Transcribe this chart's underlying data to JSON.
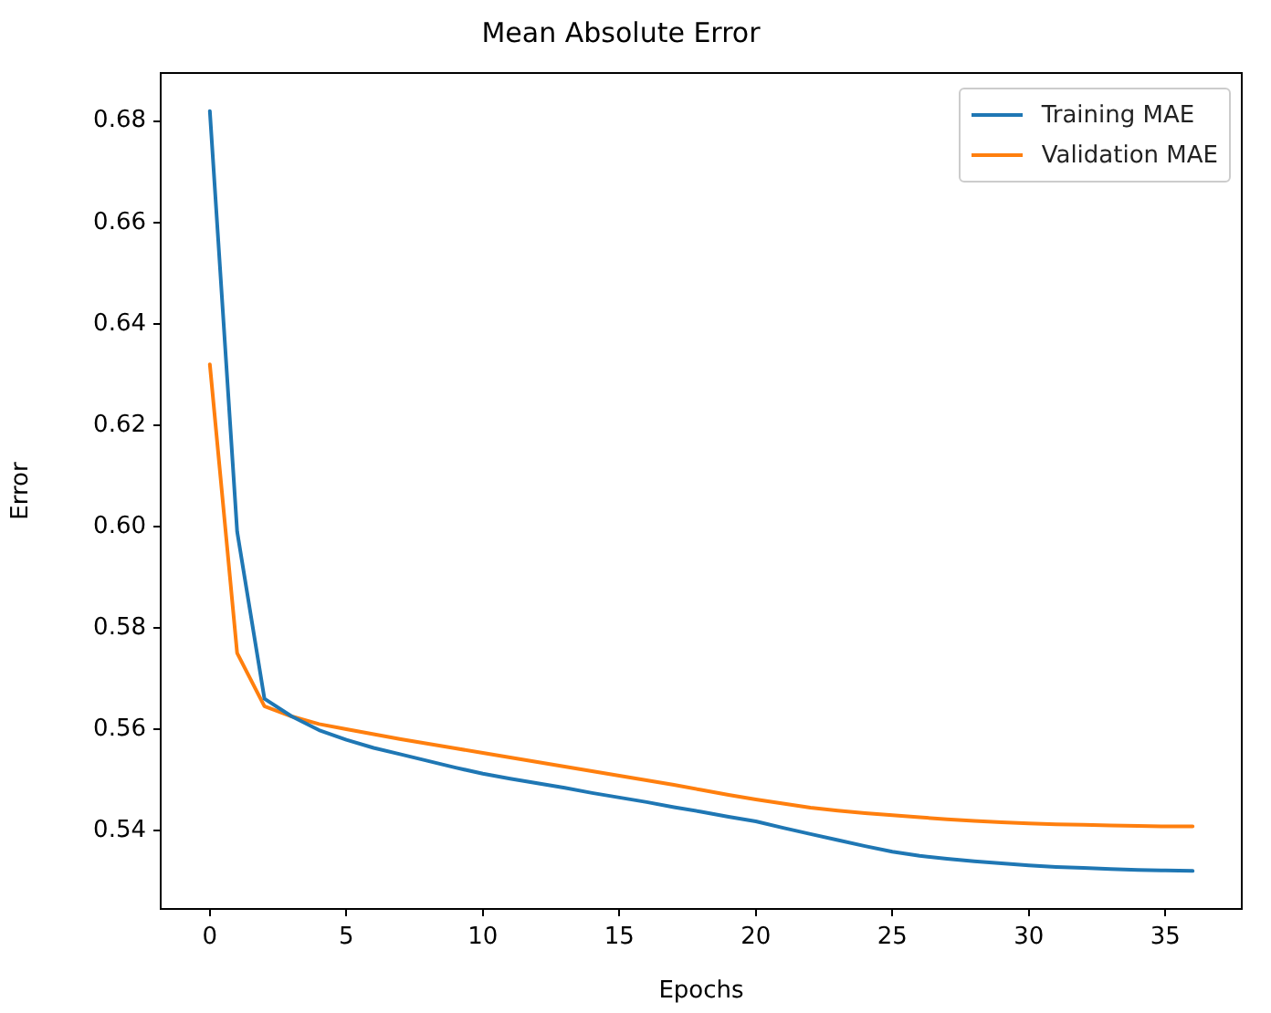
{
  "chart_data": {
    "type": "line",
    "title": "Mean Absolute Error",
    "xlabel": "Epochs",
    "ylabel": "Error",
    "x": [
      0,
      1,
      2,
      3,
      4,
      5,
      6,
      7,
      8,
      9,
      10,
      11,
      12,
      13,
      14,
      15,
      16,
      17,
      18,
      19,
      20,
      21,
      22,
      23,
      24,
      25,
      26,
      27,
      28,
      29,
      30,
      31,
      32,
      33,
      34,
      35,
      36
    ],
    "series": [
      {
        "name": "Training MAE",
        "color": "#1f77b4",
        "values": [
          0.682,
          0.599,
          0.566,
          0.5625,
          0.5598,
          0.5579,
          0.5563,
          0.555,
          0.5537,
          0.5524,
          0.5512,
          0.5502,
          0.5493,
          0.5484,
          0.5474,
          0.5465,
          0.5456,
          0.5446,
          0.5437,
          0.5427,
          0.5418,
          0.5405,
          0.5393,
          0.5381,
          0.5369,
          0.5358,
          0.535,
          0.5344,
          0.5339,
          0.5335,
          0.5331,
          0.5328,
          0.5326,
          0.5324,
          0.5322,
          0.5321,
          0.532
        ]
      },
      {
        "name": "Validation MAE",
        "color": "#ff7f0e",
        "values": [
          0.632,
          0.575,
          0.5645,
          0.5625,
          0.561,
          0.56,
          0.559,
          0.558,
          0.5571,
          0.5562,
          0.5553,
          0.5544,
          0.5535,
          0.5526,
          0.5517,
          0.5508,
          0.5499,
          0.549,
          0.548,
          0.547,
          0.5461,
          0.5453,
          0.5445,
          0.5439,
          0.5434,
          0.543,
          0.5426,
          0.5422,
          0.5419,
          0.5416,
          0.5414,
          0.5412,
          0.5411,
          0.541,
          0.5409,
          0.5408,
          0.5408
        ]
      }
    ],
    "xlim": [
      -1.8,
      37.8
    ],
    "xticks": [
      0,
      5,
      10,
      15,
      20,
      25,
      30,
      35
    ],
    "ylim": [
      0.5245,
      0.6895
    ],
    "yticks": [
      0.54,
      0.56,
      0.58,
      {
        "value": 0.6,
        "label": "0.60"
      },
      0.62,
      0.64,
      0.66,
      0.68
    ],
    "grid": false,
    "legend": "top right",
    "marker": "none",
    "line_style": "solid"
  }
}
